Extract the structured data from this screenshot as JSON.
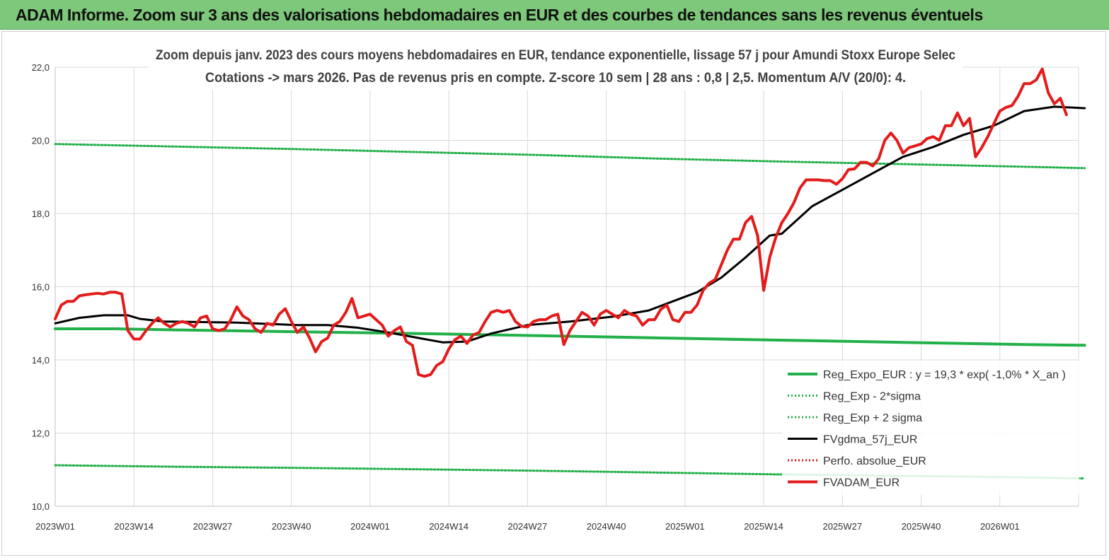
{
  "banner": {
    "title": "ADAM Informe. Zoom sur 3 ans des valorisations hebdomadaires en EUR et des courbes de tendances sans les revenus éventuels"
  },
  "chart_data": {
    "type": "line",
    "subtitle_line1": "Zoom depuis janv. 2023 des cours moyens hebdomadaires en EUR, tendance exponentielle, lissage 57 j pour Amundi Stoxx Europe Selec",
    "subtitle_line2": "Cotations -> mars 2026. Pas de revenus pris en compte. Z-score 10 sem | 28 ans : 0,8 | 2,5. Momentum A/V (20/0): 4.",
    "ylim": [
      10,
      22
    ],
    "yticks": [
      "10,0",
      "12,0",
      "14,0",
      "16,0",
      "18,0",
      "20,0",
      "22,0"
    ],
    "ytick_values": [
      10,
      12,
      14,
      16,
      18,
      20,
      22
    ],
    "xticks": [
      "2023W01",
      "2023W14",
      "2023W27",
      "2023W40",
      "2024W01",
      "2024W14",
      "2024W27",
      "2024W40",
      "2025W01",
      "2025W14",
      "2025W27",
      "2025W40",
      "2026W01"
    ],
    "xtick_index": [
      0,
      13,
      26,
      39,
      52,
      65,
      78,
      91,
      104,
      117,
      130,
      143,
      156
    ],
    "x_count": 170,
    "grid": true,
    "legend_position": "bottom-right",
    "series": [
      {
        "name": "Reg_Expo_EUR : y = 19,3 * exp( -1,0% *  X_an )",
        "color": "#22b04a",
        "style": "thick",
        "points": [
          [
            0,
            14.85
          ],
          [
            10,
            14.85
          ],
          [
            20,
            14.82
          ],
          [
            40,
            14.77
          ],
          [
            60,
            14.72
          ],
          [
            80,
            14.66
          ],
          [
            100,
            14.6
          ],
          [
            120,
            14.54
          ],
          [
            140,
            14.48
          ],
          [
            160,
            14.42
          ],
          [
            170,
            14.4
          ]
        ]
      },
      {
        "name": "Reg_Exp - 2*sigma",
        "color": "#22b04a",
        "style": "dotted",
        "points": [
          [
            0,
            11.12
          ],
          [
            20,
            11.08
          ],
          [
            40,
            11.05
          ],
          [
            60,
            11.01
          ],
          [
            80,
            10.97
          ],
          [
            100,
            10.92
          ],
          [
            120,
            10.87
          ],
          [
            140,
            10.83
          ],
          [
            160,
            10.79
          ],
          [
            170,
            10.76
          ]
        ]
      },
      {
        "name": "Reg_Exp + 2 sigma",
        "color": "#22b04a",
        "style": "dotted",
        "points": [
          [
            0,
            19.9
          ],
          [
            20,
            19.83
          ],
          [
            40,
            19.76
          ],
          [
            60,
            19.68
          ],
          [
            80,
            19.6
          ],
          [
            100,
            19.5
          ],
          [
            120,
            19.42
          ],
          [
            140,
            19.35
          ],
          [
            160,
            19.28
          ],
          [
            170,
            19.24
          ]
        ]
      },
      {
        "name": "FVgdma_57j_EUR",
        "color": "#000000",
        "style": "solid",
        "points": [
          [
            0,
            15.0
          ],
          [
            4,
            15.15
          ],
          [
            8,
            15.22
          ],
          [
            12,
            15.22
          ],
          [
            14,
            15.12
          ],
          [
            18,
            15.05
          ],
          [
            30,
            15.02
          ],
          [
            40,
            14.95
          ],
          [
            45,
            14.95
          ],
          [
            50,
            14.88
          ],
          [
            55,
            14.75
          ],
          [
            60,
            14.6
          ],
          [
            64,
            14.48
          ],
          [
            68,
            14.5
          ],
          [
            72,
            14.72
          ],
          [
            78,
            14.95
          ],
          [
            85,
            15.05
          ],
          [
            92,
            15.18
          ],
          [
            98,
            15.35
          ],
          [
            102,
            15.6
          ],
          [
            106,
            15.85
          ],
          [
            110,
            16.25
          ],
          [
            114,
            16.8
          ],
          [
            118,
            17.4
          ],
          [
            120,
            17.45
          ],
          [
            125,
            18.2
          ],
          [
            130,
            18.65
          ],
          [
            135,
            19.1
          ],
          [
            140,
            19.55
          ],
          [
            145,
            19.82
          ],
          [
            150,
            20.15
          ],
          [
            155,
            20.4
          ],
          [
            160,
            20.8
          ],
          [
            165,
            20.92
          ],
          [
            170,
            20.88
          ]
        ]
      },
      {
        "name": "Perfo. absolue_EUR",
        "color": "#d62020",
        "style": "dotted",
        "points": []
      },
      {
        "name": "FVADAM_EUR",
        "color": "#e31b1b",
        "style": "thick",
        "points": [
          [
            0,
            15.12
          ],
          [
            1,
            15.5
          ],
          [
            2,
            15.6
          ],
          [
            3,
            15.6
          ],
          [
            4,
            15.75
          ],
          [
            5,
            15.78
          ],
          [
            6,
            15.8
          ],
          [
            7,
            15.82
          ],
          [
            8,
            15.8
          ],
          [
            9,
            15.85
          ],
          [
            10,
            15.85
          ],
          [
            11,
            15.8
          ],
          [
            12,
            14.8
          ],
          [
            13,
            14.57
          ],
          [
            14,
            14.57
          ],
          [
            15,
            14.8
          ],
          [
            16,
            15.0
          ],
          [
            17,
            15.15
          ],
          [
            18,
            15.0
          ],
          [
            19,
            14.9
          ],
          [
            20,
            15.0
          ],
          [
            21,
            15.05
          ],
          [
            22,
            15.0
          ],
          [
            23,
            14.9
          ],
          [
            24,
            15.15
          ],
          [
            25,
            15.2
          ],
          [
            26,
            14.85
          ],
          [
            27,
            14.8
          ],
          [
            28,
            14.85
          ],
          [
            29,
            15.1
          ],
          [
            30,
            15.45
          ],
          [
            31,
            15.2
          ],
          [
            32,
            15.1
          ],
          [
            33,
            14.85
          ],
          [
            34,
            14.75
          ],
          [
            35,
            15.0
          ],
          [
            36,
            14.95
          ],
          [
            37,
            15.25
          ],
          [
            38,
            15.4
          ],
          [
            39,
            15.05
          ],
          [
            40,
            14.75
          ],
          [
            41,
            14.9
          ],
          [
            42,
            14.6
          ],
          [
            43,
            14.22
          ],
          [
            44,
            14.5
          ],
          [
            45,
            14.6
          ],
          [
            46,
            14.95
          ],
          [
            47,
            15.05
          ],
          [
            48,
            15.3
          ],
          [
            49,
            15.68
          ],
          [
            50,
            15.15
          ],
          [
            51,
            15.2
          ],
          [
            52,
            15.25
          ],
          [
            53,
            15.1
          ],
          [
            54,
            14.95
          ],
          [
            55,
            14.65
          ],
          [
            56,
            14.8
          ],
          [
            57,
            14.9
          ],
          [
            58,
            14.5
          ],
          [
            59,
            14.4
          ],
          [
            60,
            13.6
          ],
          [
            61,
            13.55
          ],
          [
            62,
            13.6
          ],
          [
            63,
            13.85
          ],
          [
            64,
            13.95
          ],
          [
            65,
            14.3
          ],
          [
            66,
            14.55
          ],
          [
            67,
            14.65
          ],
          [
            68,
            14.45
          ],
          [
            69,
            14.68
          ],
          [
            70,
            14.75
          ],
          [
            71,
            15.05
          ],
          [
            72,
            15.3
          ],
          [
            73,
            15.35
          ],
          [
            74,
            15.3
          ],
          [
            75,
            15.35
          ],
          [
            76,
            15.05
          ],
          [
            77,
            14.92
          ],
          [
            78,
            14.9
          ],
          [
            79,
            15.05
          ],
          [
            80,
            15.1
          ],
          [
            81,
            15.1
          ],
          [
            82,
            15.2
          ],
          [
            83,
            15.25
          ],
          [
            84,
            14.42
          ],
          [
            85,
            14.8
          ],
          [
            86,
            15.05
          ],
          [
            87,
            15.3
          ],
          [
            88,
            15.2
          ],
          [
            89,
            14.95
          ],
          [
            90,
            15.25
          ],
          [
            91,
            15.35
          ],
          [
            92,
            15.25
          ],
          [
            93,
            15.15
          ],
          [
            94,
            15.35
          ],
          [
            95,
            15.25
          ],
          [
            96,
            15.2
          ],
          [
            97,
            14.95
          ],
          [
            98,
            15.1
          ],
          [
            99,
            15.1
          ],
          [
            100,
            15.38
          ],
          [
            101,
            15.5
          ],
          [
            102,
            15.1
          ],
          [
            103,
            15.05
          ],
          [
            104,
            15.3
          ],
          [
            105,
            15.3
          ],
          [
            106,
            15.5
          ],
          [
            107,
            15.9
          ],
          [
            108,
            16.1
          ],
          [
            109,
            16.2
          ],
          [
            110,
            16.6
          ],
          [
            111,
            17.0
          ],
          [
            112,
            17.3
          ],
          [
            113,
            17.3
          ],
          [
            114,
            17.75
          ],
          [
            115,
            17.92
          ],
          [
            116,
            17.4
          ],
          [
            117,
            15.9
          ],
          [
            118,
            16.8
          ],
          [
            119,
            17.35
          ],
          [
            120,
            17.75
          ],
          [
            121,
            18.0
          ],
          [
            122,
            18.3
          ],
          [
            123,
            18.7
          ],
          [
            124,
            18.92
          ],
          [
            125,
            18.92
          ],
          [
            126,
            18.92
          ],
          [
            127,
            18.9
          ],
          [
            128,
            18.9
          ],
          [
            129,
            18.8
          ],
          [
            130,
            18.95
          ],
          [
            131,
            19.2
          ],
          [
            132,
            19.22
          ],
          [
            133,
            19.4
          ],
          [
            134,
            19.4
          ],
          [
            135,
            19.3
          ],
          [
            136,
            19.5
          ],
          [
            137,
            20.0
          ],
          [
            138,
            20.2
          ],
          [
            139,
            20.0
          ],
          [
            140,
            19.65
          ],
          [
            141,
            19.8
          ],
          [
            142,
            19.85
          ],
          [
            143,
            19.9
          ],
          [
            144,
            20.05
          ],
          [
            145,
            20.1
          ],
          [
            146,
            20.0
          ],
          [
            147,
            20.4
          ],
          [
            148,
            20.4
          ],
          [
            149,
            20.75
          ],
          [
            150,
            20.4
          ],
          [
            151,
            20.6
          ],
          [
            152,
            19.55
          ],
          [
            153,
            19.8
          ],
          [
            154,
            20.1
          ],
          [
            155,
            20.45
          ],
          [
            156,
            20.8
          ],
          [
            157,
            20.9
          ],
          [
            158,
            20.95
          ],
          [
            159,
            21.2
          ],
          [
            160,
            21.55
          ],
          [
            161,
            21.55
          ],
          [
            162,
            21.65
          ],
          [
            163,
            21.95
          ],
          [
            164,
            21.3
          ],
          [
            165,
            21.0
          ],
          [
            166,
            21.15
          ],
          [
            167,
            20.7
          ]
        ]
      }
    ]
  }
}
